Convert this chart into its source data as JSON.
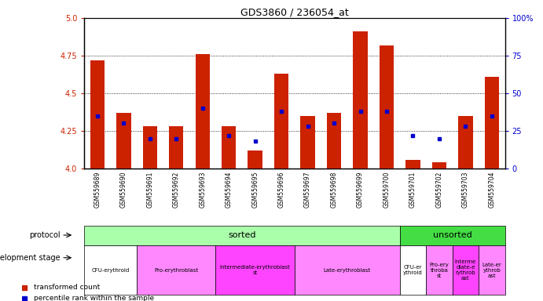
{
  "title": "GDS3860 / 236054_at",
  "samples": [
    "GSM559689",
    "GSM559690",
    "GSM559691",
    "GSM559692",
    "GSM559693",
    "GSM559694",
    "GSM559695",
    "GSM559696",
    "GSM559697",
    "GSM559698",
    "GSM559699",
    "GSM559700",
    "GSM559701",
    "GSM559702",
    "GSM559703",
    "GSM559704"
  ],
  "transformed_counts": [
    4.72,
    4.37,
    4.28,
    4.28,
    4.76,
    4.28,
    4.12,
    4.63,
    4.35,
    4.37,
    4.91,
    4.82,
    4.06,
    4.04,
    4.35,
    4.61
  ],
  "percentile_ranks": [
    35,
    30,
    20,
    20,
    40,
    22,
    18,
    38,
    28,
    30,
    38,
    38,
    22,
    20,
    28,
    35
  ],
  "ylim_left": [
    4.0,
    5.0
  ],
  "ylim_right": [
    0,
    100
  ],
  "yticks_left": [
    4.0,
    4.25,
    4.5,
    4.75,
    5.0
  ],
  "yticks_right": [
    0,
    25,
    50,
    75,
    100
  ],
  "bar_color": "#cc2200",
  "percentile_color": "#0000cc",
  "protocol_sorted_color": "#aaffaa",
  "protocol_unsorted_color": "#44dd44",
  "protocol_sorted_samples": 12,
  "protocol_unsorted_samples": 4,
  "protocol_sorted_label": "sorted",
  "protocol_unsorted_label": "unsorted",
  "dev_stages_sorted": [
    {
      "label": "CFU-erythroid",
      "start": 0,
      "end": 2,
      "color": "#ffffff"
    },
    {
      "label": "Pro-erythroblast",
      "start": 2,
      "end": 5,
      "color": "#ff88ff"
    },
    {
      "label": "Intermediate-erythroblast\nst",
      "start": 5,
      "end": 8,
      "color": "#ff44ff"
    },
    {
      "label": "Late-erythroblast",
      "start": 8,
      "end": 12,
      "color": "#ff88ff"
    }
  ],
  "dev_stages_unsorted": [
    {
      "label": "CFU-er\nythroid",
      "start": 12,
      "end": 13,
      "color": "#ffffff"
    },
    {
      "label": "Pro-ery\nthroba\nst",
      "start": 13,
      "end": 14,
      "color": "#ff88ff"
    },
    {
      "label": "Interme\ndiate-e\nrythrob\nast",
      "start": 14,
      "end": 15,
      "color": "#ff44ff"
    },
    {
      "label": "Late-er\nythrob\nast",
      "start": 15,
      "end": 16,
      "color": "#ff88ff"
    }
  ],
  "tick_label_color_left": "#cc2200",
  "tick_label_color_right": "#0000cc",
  "xticklabel_bg": "#cccccc",
  "legend_bar_label": "transformed count",
  "legend_pct_label": "percentile rank within the sample",
  "protocol_row_label": "protocol",
  "dev_stage_row_label": "development stage"
}
